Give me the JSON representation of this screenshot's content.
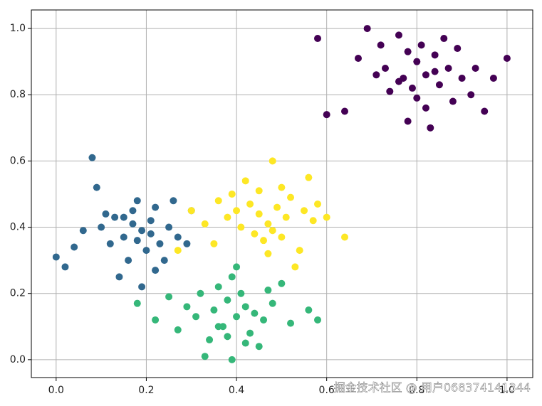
{
  "chart_data": {
    "type": "scatter",
    "xlim": [
      -0.055,
      1.057
    ],
    "ylim": [
      -0.054,
      1.056
    ],
    "xticks": [
      {
        "value": 0,
        "label": "0.0"
      },
      0.2,
      0.4,
      0.6,
      0.8,
      {
        "value": 1,
        "label": "1.0"
      }
    ],
    "yticks": [
      {
        "value": 0,
        "label": "0.0"
      },
      0.2,
      0.4,
      0.6,
      0.8,
      {
        "value": 1,
        "label": "1.0"
      }
    ],
    "grid": true,
    "watermark": "掘金技术社区 @ 用户068374141344",
    "series": [
      {
        "color": "#440154",
        "x": [
          0.58,
          1.0,
          0.6,
          0.69,
          0.78,
          0.83,
          0.95,
          0.73,
          0.76,
          0.8,
          0.82,
          0.85,
          0.87,
          0.9,
          0.92,
          0.78,
          0.81,
          0.84,
          0.74,
          0.71,
          0.88,
          0.79,
          0.86,
          0.93,
          0.67,
          0.76,
          0.82,
          0.89,
          0.72,
          0.84,
          0.8,
          0.77,
          0.64,
          0.97
        ],
        "y": [
          0.97,
          0.91,
          0.74,
          1.0,
          0.72,
          0.7,
          0.75,
          0.88,
          0.84,
          0.9,
          0.86,
          0.83,
          0.88,
          0.85,
          0.8,
          0.93,
          0.95,
          0.92,
          0.81,
          0.86,
          0.78,
          0.82,
          0.97,
          0.88,
          0.91,
          0.98,
          0.76,
          0.94,
          0.95,
          0.87,
          0.79,
          0.85,
          0.75,
          0.85
        ]
      },
      {
        "color": "#31688e",
        "x": [
          0.0,
          0.08,
          0.02,
          0.3,
          0.1,
          0.13,
          0.15,
          0.17,
          0.19,
          0.21,
          0.23,
          0.25,
          0.12,
          0.18,
          0.2,
          0.16,
          0.22,
          0.27,
          0.06,
          0.09,
          0.14,
          0.24,
          0.19,
          0.11,
          0.26,
          0.17,
          0.22,
          0.29,
          0.04,
          0.15,
          0.21,
          0.18
        ],
        "y": [
          0.31,
          0.61,
          0.28,
          0.45,
          0.4,
          0.43,
          0.37,
          0.45,
          0.39,
          0.42,
          0.35,
          0.4,
          0.35,
          0.48,
          0.33,
          0.3,
          0.46,
          0.37,
          0.39,
          0.52,
          0.25,
          0.3,
          0.22,
          0.44,
          0.48,
          0.41,
          0.27,
          0.35,
          0.34,
          0.43,
          0.38,
          0.36
        ]
      },
      {
        "color": "#35b779",
        "x": [
          0.33,
          0.39,
          0.18,
          0.58,
          0.35,
          0.38,
          0.4,
          0.42,
          0.44,
          0.37,
          0.41,
          0.46,
          0.36,
          0.43,
          0.39,
          0.31,
          0.48,
          0.27,
          0.25,
          0.5,
          0.34,
          0.45,
          0.4,
          0.29,
          0.52,
          0.22,
          0.38,
          0.47,
          0.42,
          0.56,
          0.32,
          0.36
        ],
        "y": [
          0.01,
          0.0,
          0.17,
          0.12,
          0.15,
          0.18,
          0.13,
          0.16,
          0.14,
          0.1,
          0.2,
          0.12,
          0.22,
          0.08,
          0.25,
          0.13,
          0.17,
          0.09,
          0.19,
          0.23,
          0.06,
          0.04,
          0.28,
          0.16,
          0.11,
          0.12,
          0.07,
          0.21,
          0.05,
          0.15,
          0.2,
          0.1
        ]
      },
      {
        "color": "#fde725",
        "x": [
          0.64,
          0.48,
          0.35,
          0.53,
          0.27,
          0.45,
          0.47,
          0.49,
          0.51,
          0.43,
          0.41,
          0.39,
          0.55,
          0.57,
          0.44,
          0.5,
          0.46,
          0.38,
          0.52,
          0.58,
          0.36,
          0.42,
          0.48,
          0.54,
          0.4,
          0.33,
          0.6,
          0.47,
          0.3,
          0.56,
          0.45,
          0.5
        ],
        "y": [
          0.37,
          0.6,
          0.35,
          0.28,
          0.33,
          0.44,
          0.41,
          0.46,
          0.43,
          0.47,
          0.4,
          0.5,
          0.45,
          0.42,
          0.38,
          0.52,
          0.36,
          0.43,
          0.49,
          0.47,
          0.48,
          0.54,
          0.39,
          0.33,
          0.45,
          0.41,
          0.43,
          0.32,
          0.45,
          0.55,
          0.51,
          0.37
        ]
      }
    ]
  }
}
